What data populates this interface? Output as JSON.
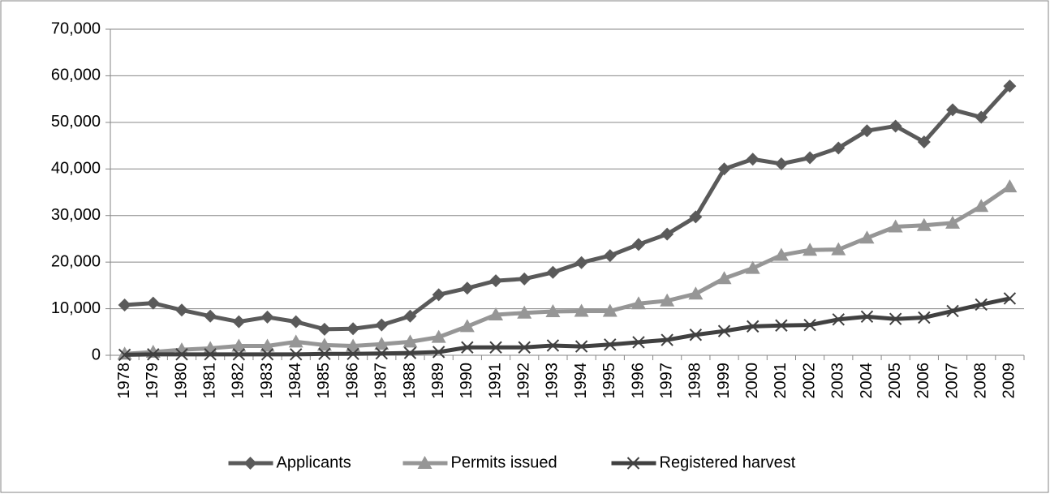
{
  "chart_data": {
    "type": "line",
    "categories": [
      "1978",
      "1979",
      "1980",
      "1981",
      "1982",
      "1983",
      "1984",
      "1985",
      "1986",
      "1987",
      "1988",
      "1989",
      "1990",
      "1991",
      "1992",
      "1993",
      "1994",
      "1995",
      "1996",
      "1997",
      "1998",
      "1999",
      "2000",
      "2001",
      "2002",
      "2003",
      "2004",
      "2005",
      "2006",
      "2007",
      "2008",
      "2009"
    ],
    "series": [
      {
        "name": "Applicants",
        "color": "#5a5a5a",
        "marker": "diamond",
        "values": [
          10800,
          11200,
          9700,
          8400,
          7200,
          8200,
          7200,
          5600,
          5700,
          6500,
          8400,
          13000,
          14400,
          16000,
          16400,
          17800,
          19900,
          21400,
          23800,
          26000,
          29700,
          40000,
          42100,
          41100,
          42400,
          44500,
          48200,
          49200,
          45800,
          52700,
          51100,
          57800
        ]
      },
      {
        "name": "Permits issued",
        "color": "#969696",
        "marker": "triangle",
        "values": [
          300,
          700,
          1200,
          1500,
          2000,
          2000,
          2900,
          2200,
          2000,
          2400,
          2900,
          3900,
          6200,
          8700,
          9100,
          9400,
          9500,
          9500,
          11100,
          11700,
          13200,
          16500,
          18700,
          21500,
          22600,
          22700,
          25200,
          27600,
          27900,
          28400,
          32000,
          36200
        ]
      },
      {
        "name": "Registered harvest",
        "color": "#404040",
        "marker": "x",
        "values": [
          100,
          200,
          200,
          200,
          200,
          200,
          200,
          300,
          300,
          400,
          500,
          700,
          1700,
          1700,
          1700,
          2100,
          1900,
          2300,
          2800,
          3300,
          4400,
          5200,
          6200,
          6400,
          6500,
          7700,
          8300,
          7800,
          8100,
          9500,
          10900,
          12200
        ]
      }
    ],
    "ylim": [
      0,
      70000
    ],
    "yticks": [
      0,
      {
        "value": 10000,
        "label": "10,000"
      },
      {
        "value": 20000,
        "label": "20,000"
      },
      {
        "value": 30000,
        "label": "30,000"
      },
      {
        "value": 40000,
        "label": "40,000"
      },
      {
        "value": 50000,
        "label": "50,000"
      },
      {
        "value": 60000,
        "label": "60,000"
      },
      {
        "value": 70000,
        "label": "70,000"
      }
    ],
    "grid": true,
    "legend": "bottom"
  }
}
